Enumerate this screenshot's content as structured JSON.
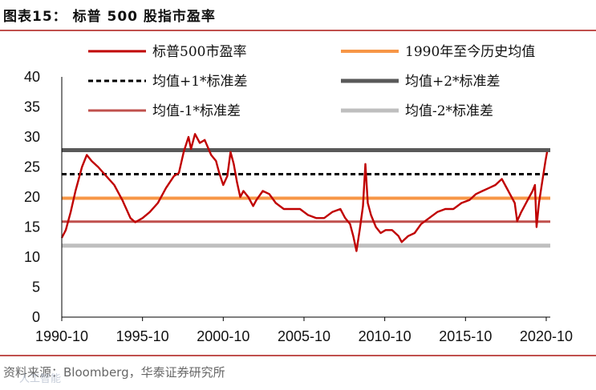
{
  "figure_label": "图表15：",
  "figure_title": "标普 500 股指市盈率",
  "source_text": "资料来源：Bloomberg，华泰证券研究所",
  "watermark_text": "人工智能",
  "colors": {
    "pe": "#c00000",
    "mean": "#f79646",
    "plus1": "#000000",
    "plus2": "#595959",
    "minus1": "#c0504d",
    "minus2": "#bfbfbf",
    "rule": "#c0504d"
  },
  "chart_data": {
    "type": "line",
    "title": "标普 500 股指市盈率",
    "xlabel": "",
    "ylabel": "",
    "xlim": [
      1990.75,
      2021.0
    ],
    "ylim": [
      0,
      40
    ],
    "y_ticks": [
      0,
      5,
      10,
      15,
      20,
      25,
      30,
      35,
      40
    ],
    "x_ticks": [
      1990.75,
      1995.75,
      2000.75,
      2005.75,
      2010.75,
      2015.75,
      2020.75
    ],
    "x_tick_labels": [
      "1990-10",
      "1995-10",
      "2000-10",
      "2005-10",
      "2010-10",
      "2015-10",
      "2020-10"
    ],
    "legend": [
      {
        "key": "pe",
        "label": "标普500市盈率",
        "style": "solid"
      },
      {
        "key": "mean",
        "label": "1990年至今历史均值",
        "style": "solid"
      },
      {
        "key": "plus1",
        "label": "均值+1*标准差",
        "style": "dashed"
      },
      {
        "key": "plus2",
        "label": "均值+2*标准差",
        "style": "solid"
      },
      {
        "key": "minus1",
        "label": "均值-1*标准差",
        "style": "solid"
      },
      {
        "key": "minus2",
        "label": "均值-2*标准差",
        "style": "solid"
      }
    ],
    "reference_lines": {
      "mean": 19.8,
      "plus1": 23.8,
      "plus2": 27.8,
      "minus1": 15.9,
      "minus2": 11.9
    },
    "series": [
      {
        "name": "标普500市盈率",
        "x": [
          1990.75,
          1991.0,
          1991.3,
          1991.6,
          1992.0,
          1992.3,
          1992.6,
          1993.0,
          1993.5,
          1994.0,
          1994.5,
          1995.0,
          1995.3,
          1995.75,
          1996.2,
          1996.7,
          1997.2,
          1997.7,
          1998.0,
          1998.3,
          1998.6,
          1998.75,
          1999.0,
          1999.3,
          1999.6,
          2000.0,
          2000.3,
          2000.5,
          2000.75,
          2001.0,
          2001.2,
          2001.4,
          2001.6,
          2001.8,
          2002.0,
          2002.3,
          2002.6,
          2002.8,
          2003.2,
          2003.6,
          2004.0,
          2004.5,
          2005.0,
          2005.5,
          2006.0,
          2006.5,
          2007.0,
          2007.5,
          2008.0,
          2008.3,
          2008.6,
          2008.8,
          2009.0,
          2009.2,
          2009.4,
          2009.55,
          2009.7,
          2009.9,
          2010.2,
          2010.5,
          2010.8,
          2011.2,
          2011.6,
          2011.8,
          2012.2,
          2012.6,
          2013.0,
          2013.5,
          2014.0,
          2014.5,
          2015.0,
          2015.5,
          2016.0,
          2016.4,
          2016.8,
          2017.2,
          2017.6,
          2018.0,
          2018.4,
          2018.8,
          2018.95,
          2019.2,
          2019.6,
          2019.9,
          2020.05,
          2020.15,
          2020.3,
          2020.5,
          2020.7,
          2020.8
        ],
        "values": [
          13.2,
          14.5,
          17.5,
          21.0,
          25.0,
          27.0,
          26.0,
          25.0,
          23.5,
          22.0,
          19.5,
          16.5,
          15.8,
          16.5,
          17.5,
          19.0,
          21.5,
          23.5,
          24.0,
          27.5,
          30.0,
          28.0,
          30.5,
          29.0,
          29.5,
          27.0,
          26.0,
          24.0,
          22.0,
          23.5,
          27.5,
          25.5,
          22.5,
          20.0,
          21.0,
          20.0,
          18.5,
          19.5,
          21.0,
          20.5,
          19.0,
          18.0,
          18.0,
          18.0,
          17.0,
          16.5,
          16.5,
          17.5,
          18.0,
          16.5,
          15.5,
          13.5,
          11.0,
          14.5,
          18.5,
          25.5,
          19.0,
          17.0,
          15.0,
          14.0,
          14.5,
          14.5,
          13.5,
          12.5,
          13.5,
          14.0,
          15.5,
          16.5,
          17.5,
          18.0,
          18.0,
          19.0,
          19.5,
          20.5,
          21.0,
          21.5,
          22.0,
          23.0,
          21.0,
          19.0,
          16.0,
          17.5,
          19.5,
          21.0,
          22.0,
          15.0,
          19.0,
          22.5,
          26.0,
          27.5
        ]
      }
    ]
  }
}
